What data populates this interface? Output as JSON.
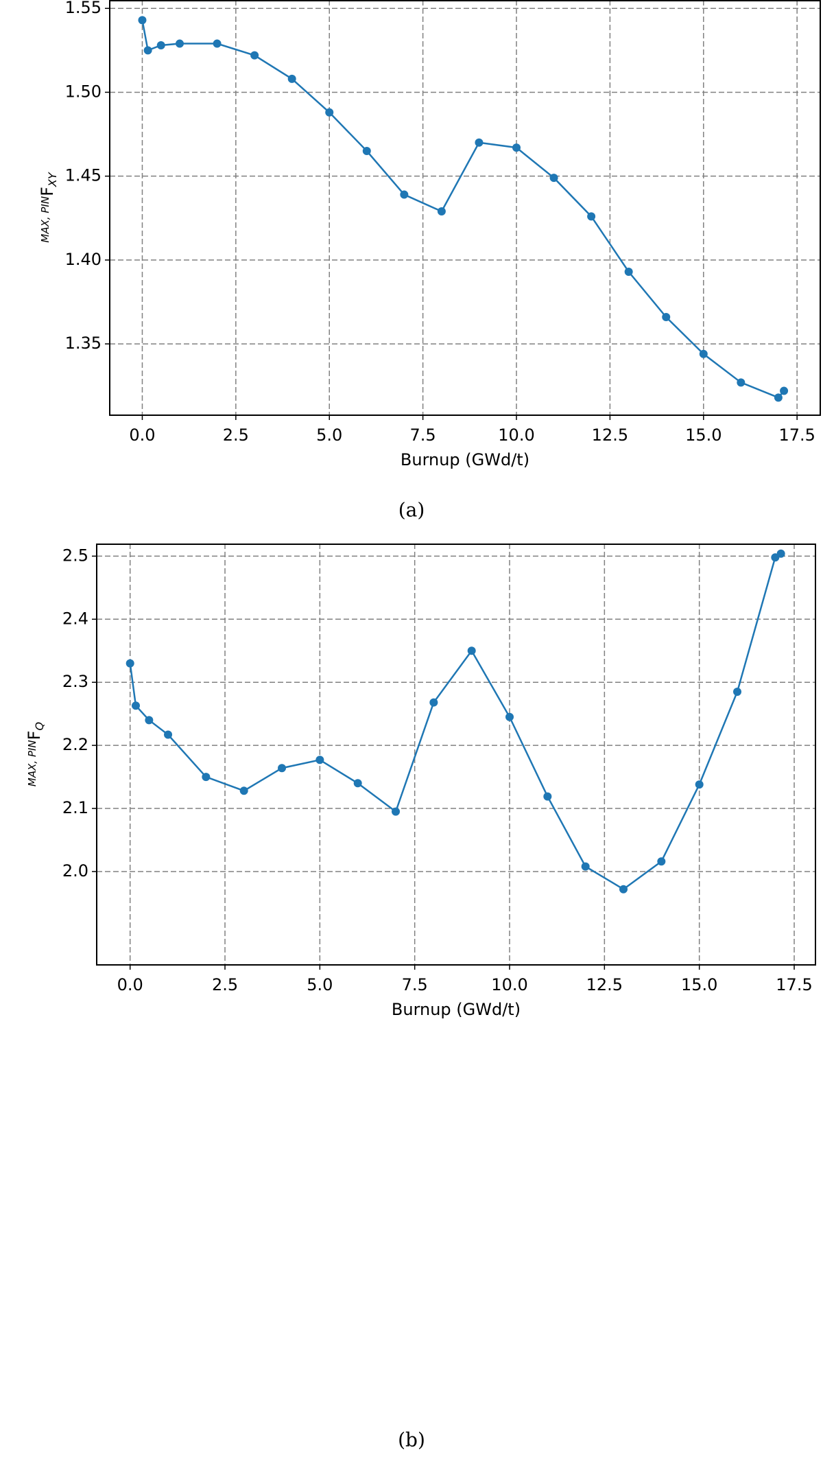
{
  "chart_data": [
    {
      "type": "line",
      "caption": "(a)",
      "xlabel": "Burnup (GWd/t)",
      "ylabel_pre": "MAX, PIN",
      "ylabel": "F",
      "ylabel_sub": "XY",
      "color": "#1f77b4",
      "grid": true,
      "x": [
        0,
        0.15,
        0.5,
        1,
        2,
        3,
        4,
        5,
        6,
        7,
        8,
        9,
        10,
        11,
        12,
        13,
        14,
        15,
        16,
        17,
        17.15
      ],
      "values": [
        1.543,
        1.525,
        1.528,
        1.529,
        1.529,
        1.522,
        1.508,
        1.488,
        1.465,
        1.439,
        1.429,
        1.47,
        1.467,
        1.449,
        1.426,
        1.393,
        1.366,
        1.344,
        1.327,
        1.318,
        1.322
      ],
      "xlim": [
        -0.87,
        18.12
      ],
      "ylim": [
        1.3075,
        1.555
      ],
      "xticks": [
        {
          "value": 0,
          "label": "0.0"
        },
        2.5,
        {
          "value": 5,
          "label": "5.0"
        },
        7.5,
        {
          "value": 10,
          "label": "10.0"
        },
        12.5,
        {
          "value": 15,
          "label": "15.0"
        },
        17.5
      ],
      "yticks": [
        1.35,
        {
          "value": 1.4,
          "label": "1.40"
        },
        1.45,
        {
          "value": 1.5,
          "label": "1.50"
        },
        1.55
      ]
    },
    {
      "type": "line",
      "caption": "(b)",
      "xlabel": "Burnup (GWd/t)",
      "ylabel_pre": "MAX, PIN",
      "ylabel": "F",
      "ylabel_sub": "Q",
      "color": "#1f77b4",
      "grid": true,
      "x": [
        0,
        0.15,
        0.5,
        1,
        2,
        3,
        4,
        5,
        6,
        7,
        8,
        9,
        10,
        11,
        12,
        13,
        14,
        15,
        16,
        17,
        17.15
      ],
      "values": [
        2.33,
        2.263,
        2.24,
        2.217,
        2.15,
        2.128,
        2.164,
        2.177,
        2.14,
        2.095,
        2.268,
        2.35,
        2.245,
        2.119,
        2.008,
        1.972,
        2.016,
        2.138,
        2.285,
        2.498,
        2.504
      ],
      "xlim": [
        -0.88,
        18.06
      ],
      "ylim": [
        1.852,
        2.52
      ],
      "xticks": [
        {
          "value": 0,
          "label": "0.0"
        },
        2.5,
        {
          "value": 5,
          "label": "5.0"
        },
        7.5,
        {
          "value": 10,
          "label": "10.0"
        },
        12.5,
        {
          "value": 15,
          "label": "15.0"
        },
        17.5
      ],
      "yticks": [
        {
          "value": 2.0,
          "label": "2.0"
        },
        2.1,
        2.2,
        2.3,
        2.4,
        2.5
      ]
    }
  ]
}
